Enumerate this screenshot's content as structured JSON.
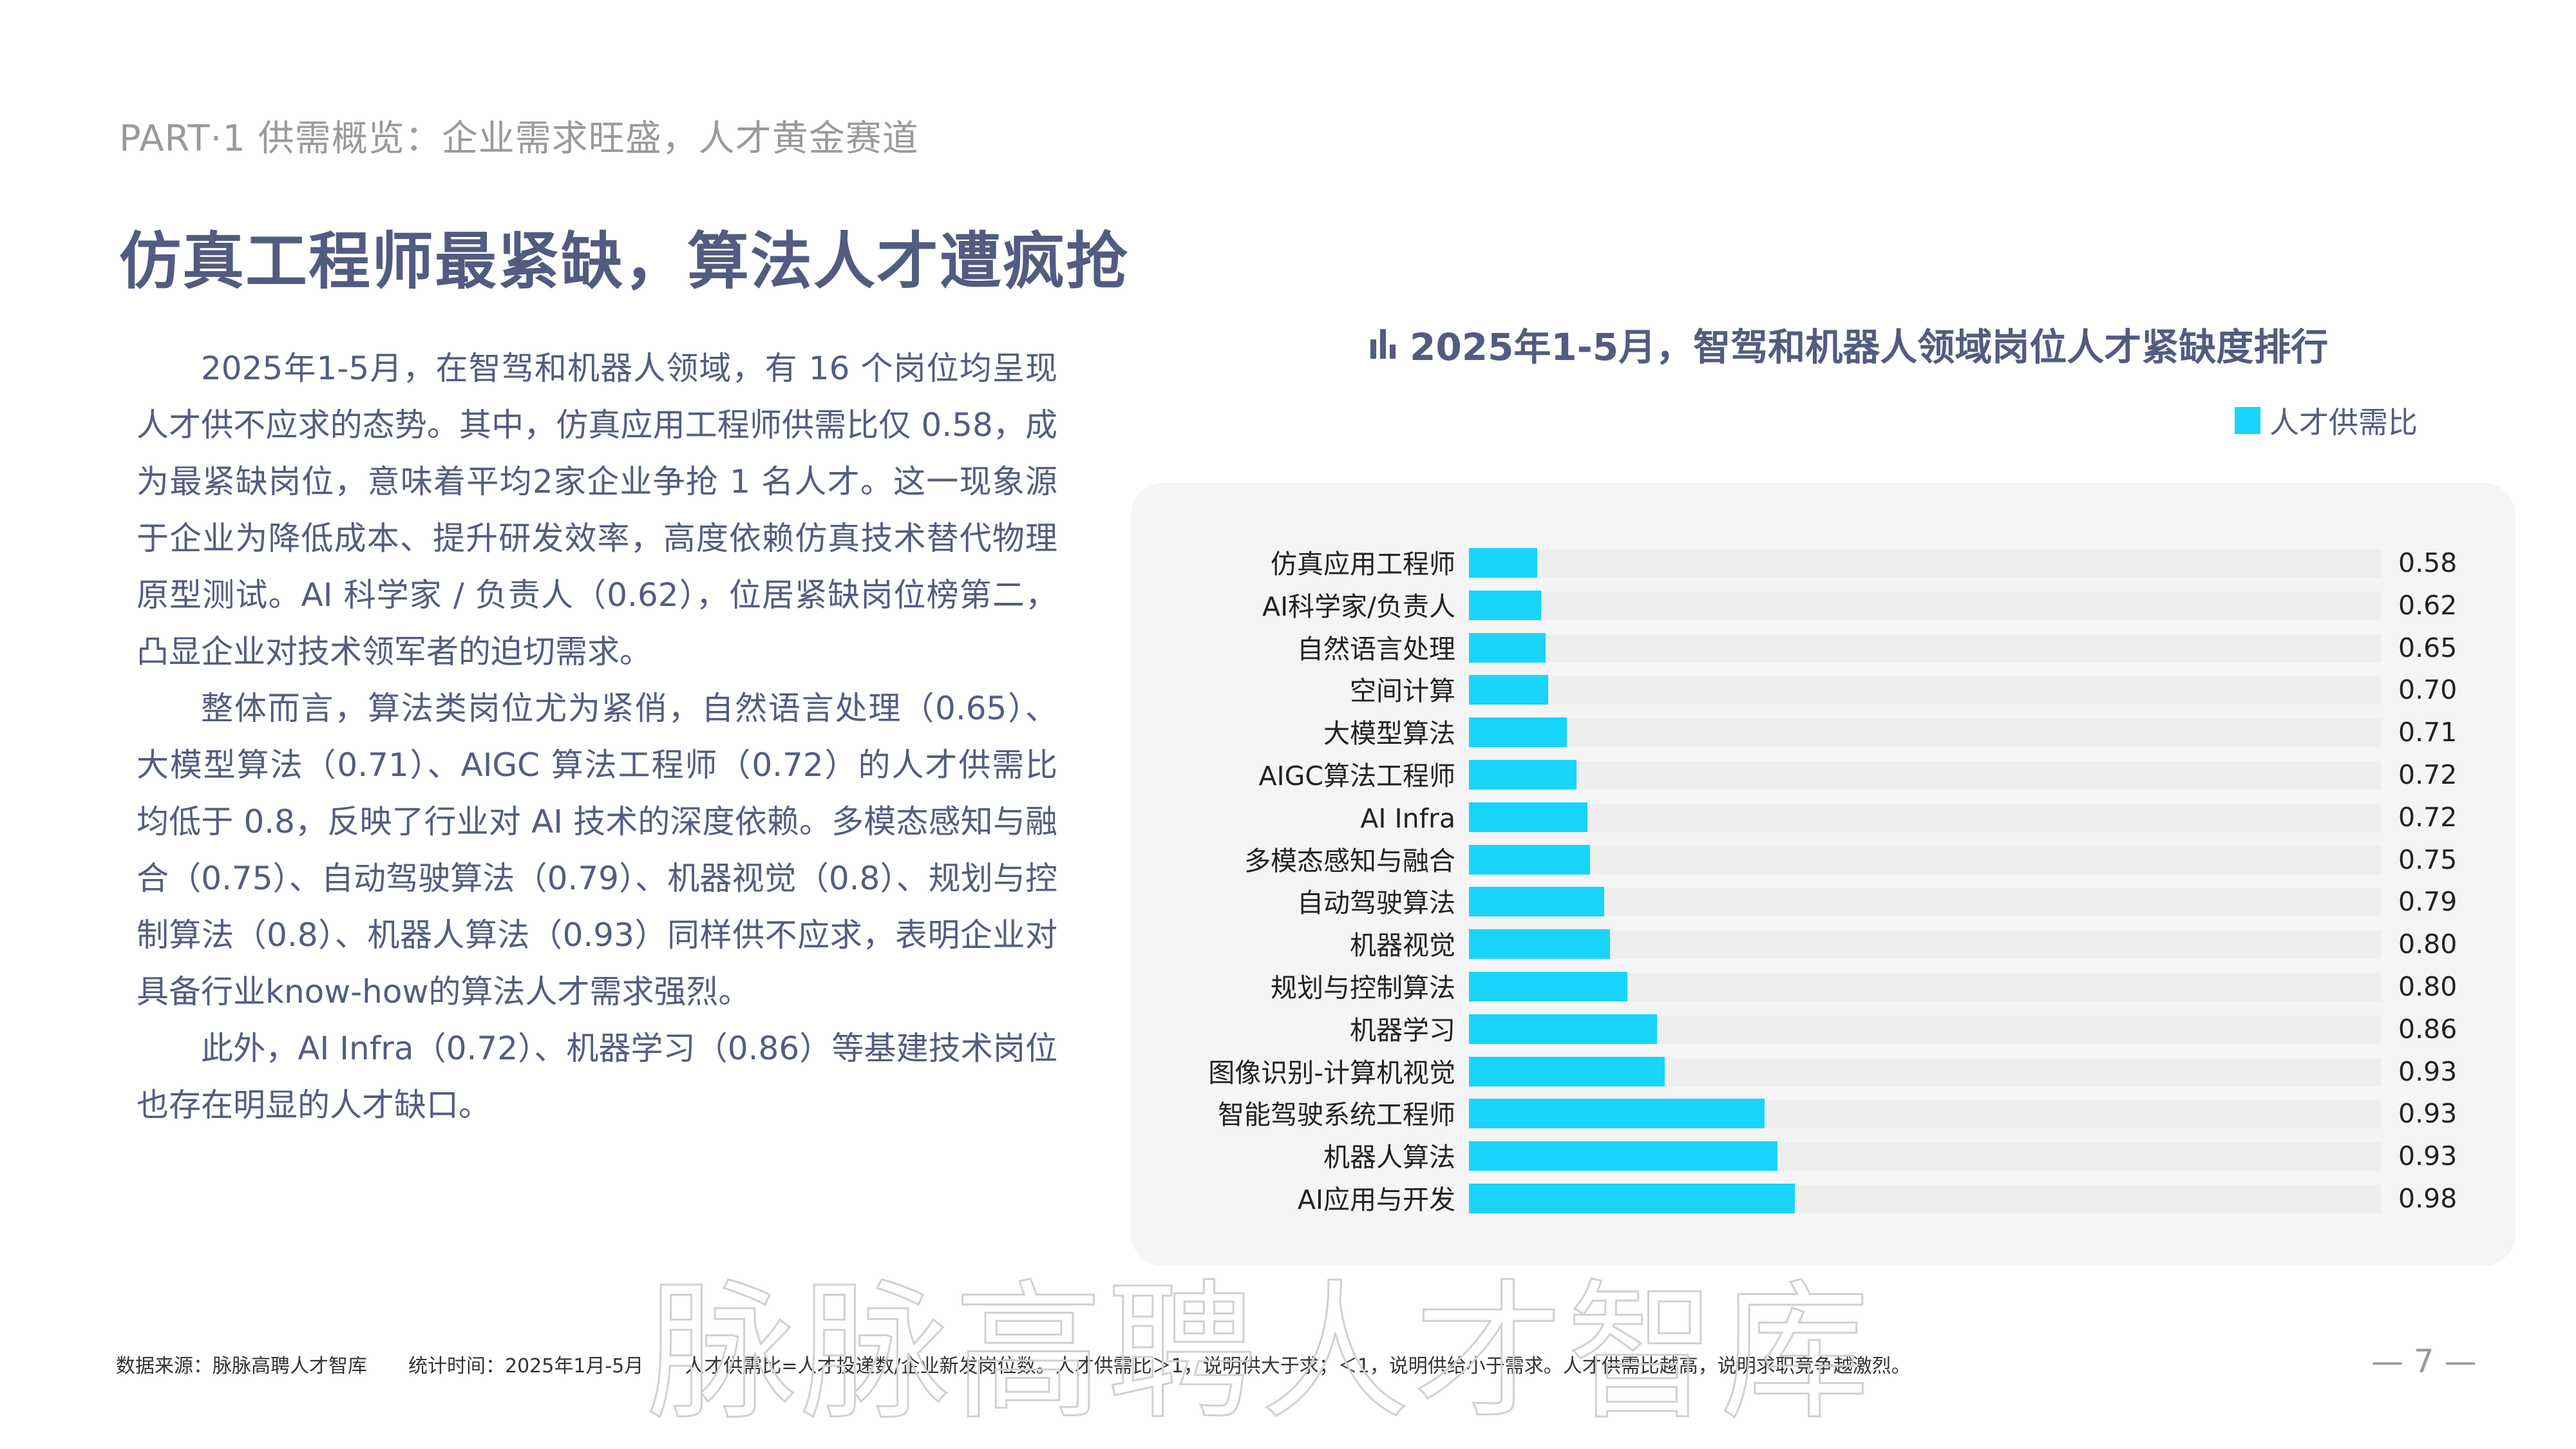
{
  "header": {
    "part_label": "PART·1  供需概览：企业需求旺盛，人才黄金赛道",
    "title": "仿真工程师最紧缺，算法人才遭疯抢"
  },
  "body": {
    "paragraphs": [
      "2025年1-5月，在智驾和机器人领域，有 16 个岗位均呈现人才供不应求的态势。其中，仿真应用工程师供需比仅 0.58，成为最紧缺岗位，意味着平均2家企业争抢 1 名人才。这一现象源于企业为降低成本、提升研发效率，高度依赖仿真技术替代物理原型测试。AI 科学家 / 负责人（0.62），位居紧缺岗位榜第二，凸显企业对技术领军者的迫切需求。",
      "整体而言，算法类岗位尤为紧俏，自然语言处理（0.65）、大模型算法（0.71）、AIGC 算法工程师（0.72）的人才供需比均低于 0.8，反映了行业对 AI 技术的深度依赖。多模态感知与融合（0.75）、自动驾驶算法（0.79）、机器视觉（0.8）、规划与控制算法（0.8）、机器人算法（0.93）同样供不应求，表明企业对具备行业know-how的算法人才需求强烈。",
      "此外，AI Infra（0.72）、机器学习（0.86）等基建技术岗位也存在明显的人才缺口。"
    ]
  },
  "chart": {
    "title": "2025年1-5月，智驾和机器人领域岗位人才紧缺度排行",
    "title_icon": "bar-chart-icon",
    "legend_label": "人才供需比",
    "bar_color": "#19d4fa",
    "track_color": "#eeeeee",
    "panel_color": "#f5f5f5"
  },
  "chart_data": {
    "type": "bar",
    "orientation": "horizontal",
    "title": "2025年1-5月，智驾和机器人领域岗位人才紧缺度排行",
    "xlabel": "",
    "ylabel": "",
    "legend": [
      "人才供需比"
    ],
    "legend_position": "top-right",
    "grid": false,
    "categories": [
      "仿真应用工程师",
      "AI科学家/负责人",
      "自然语言处理",
      "空间计算",
      "大模型算法",
      "AIGC算法工程师",
      "AI Infra",
      "多模态感知与融合",
      "自动驾驶算法",
      "机器视觉",
      "规划与控制算法",
      "机器学习",
      "图像识别-计算机视觉",
      "智能驾驶系统工程师",
      "机器人算法",
      "AI应用与开发"
    ],
    "values": [
      0.58,
      0.62,
      0.65,
      0.7,
      0.71,
      0.72,
      0.72,
      0.75,
      0.79,
      0.8,
      0.8,
      0.86,
      0.93,
      0.93,
      0.93,
      0.98
    ],
    "value_labels": [
      "0.58",
      "0.62",
      "0.65",
      "0.70",
      "0.71",
      "0.72",
      "0.72",
      "0.75",
      "0.79",
      "0.80",
      "0.80",
      "0.86",
      "0.93",
      "0.93",
      "0.93",
      "0.98"
    ],
    "rendered_bar_fill_pct": [
      7.5,
      7.9,
      8.4,
      8.7,
      10.7,
      11.8,
      13.0,
      13.3,
      14.8,
      15.5,
      17.4,
      20.6,
      21.5,
      32.4,
      33.8,
      35.7
    ]
  },
  "footer": {
    "source": "数据来源：脉脉高聘人才智库",
    "period": "统计时间：2025年1月-5月",
    "note": "人才供需比=人才投递数/企业新发岗位数。人才供需比＞1，说明供大于求；＜1，说明供给小于需求。人才供需比越高，说明求职竞争越激烈。",
    "page_number": "— 7 —"
  },
  "watermark": "脉脉高聘人才智库"
}
